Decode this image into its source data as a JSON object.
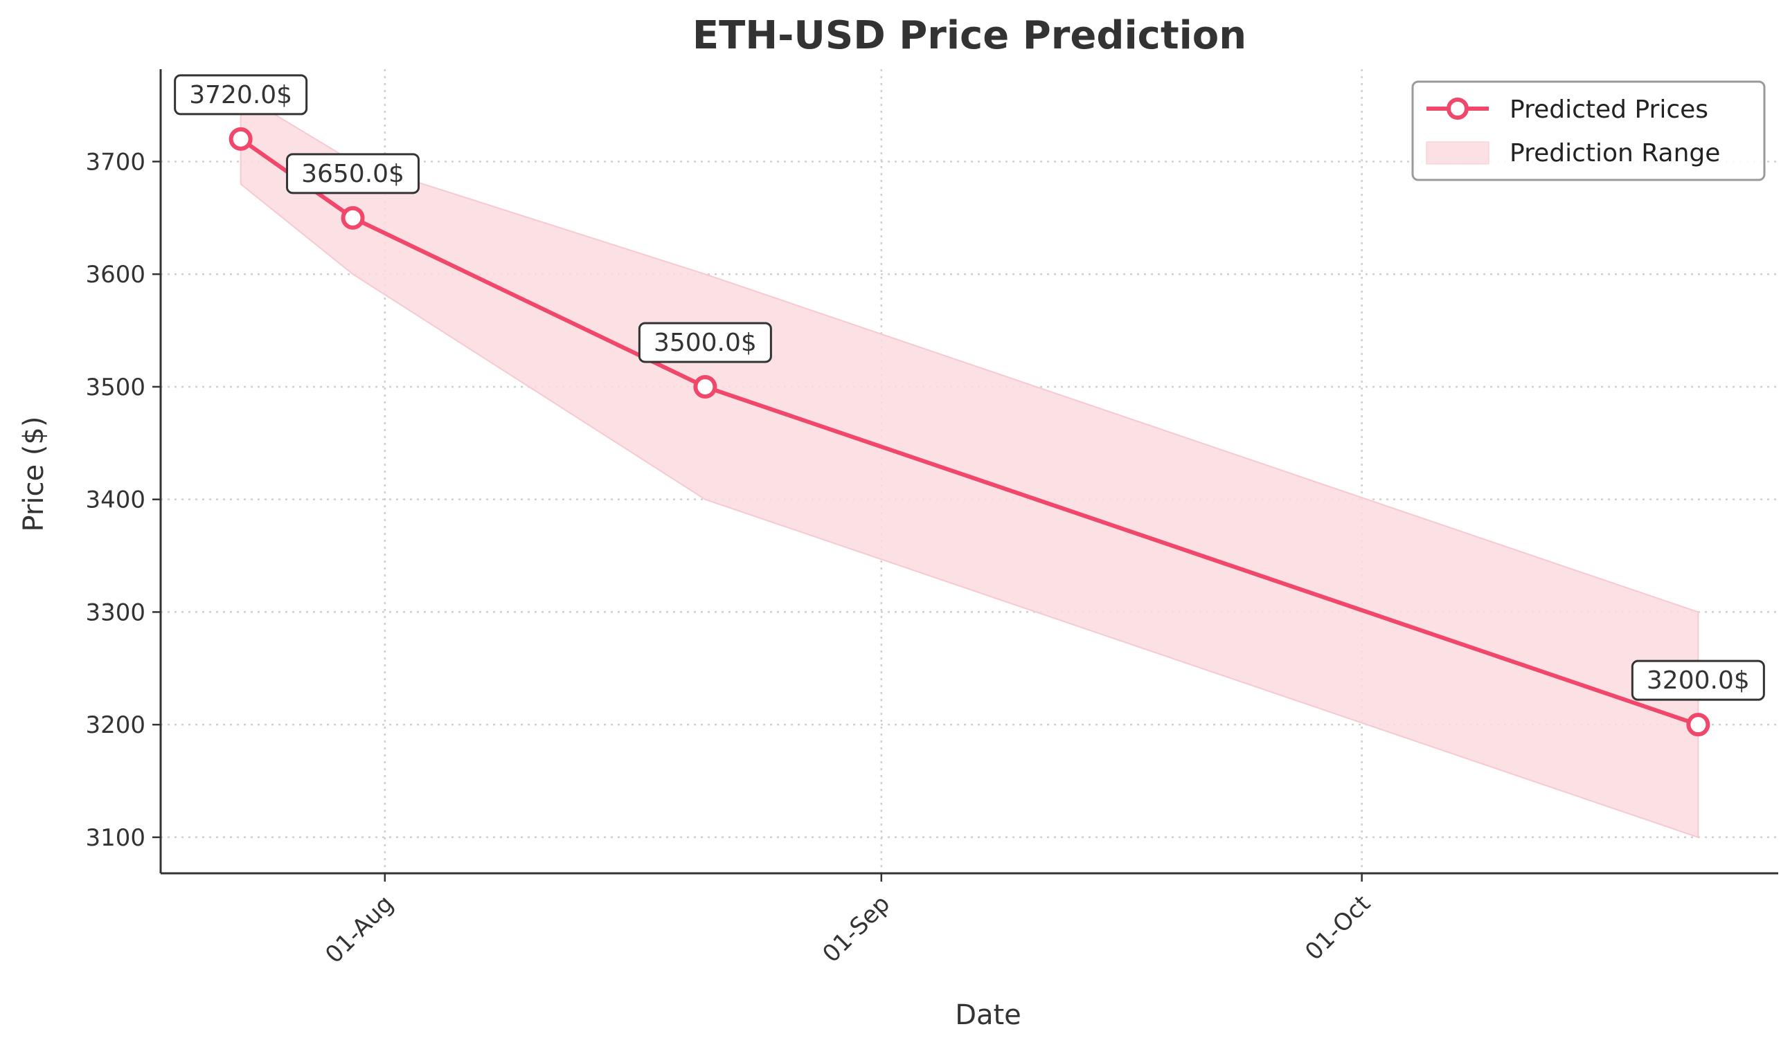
{
  "chart_data": {
    "type": "line",
    "title": "ETH-USD Price Prediction",
    "xlabel": "Date",
    "ylabel": "Price ($)",
    "x_tick_labels": [
      {
        "date": "2024-08-01",
        "label": "01-Aug"
      },
      {
        "date": "2024-09-01",
        "label": "01-Sep"
      },
      {
        "date": "2024-10-01",
        "label": "01-Oct"
      }
    ],
    "y_ticks": [
      3100,
      3200,
      3300,
      3400,
      3500,
      3600,
      3700
    ],
    "xlim": [
      "2024-07-18",
      "2024-10-27"
    ],
    "ylim": [
      3068,
      3782
    ],
    "grid": true,
    "legend_position": "top-right",
    "series": [
      {
        "name": "Predicted Prices",
        "color": "#f0476a",
        "points": [
          {
            "x": "2024-07-23",
            "y": 3720,
            "label": "3720.0$"
          },
          {
            "x": "2024-07-30",
            "y": 3650,
            "label": "3650.0$"
          },
          {
            "x": "2024-08-21",
            "y": 3500,
            "label": "3500.0$"
          },
          {
            "x": "2024-10-22",
            "y": 3200,
            "label": "3200.0$"
          }
        ]
      }
    ],
    "range": {
      "name": "Prediction Range",
      "color": "#fadadf",
      "points": [
        {
          "x": "2024-07-23",
          "low": 3680,
          "high": 3760
        },
        {
          "x": "2024-07-30",
          "low": 3600,
          "high": 3700
        },
        {
          "x": "2024-08-21",
          "low": 3400,
          "high": 3600
        },
        {
          "x": "2024-10-22",
          "low": 3100,
          "high": 3300
        }
      ]
    }
  }
}
